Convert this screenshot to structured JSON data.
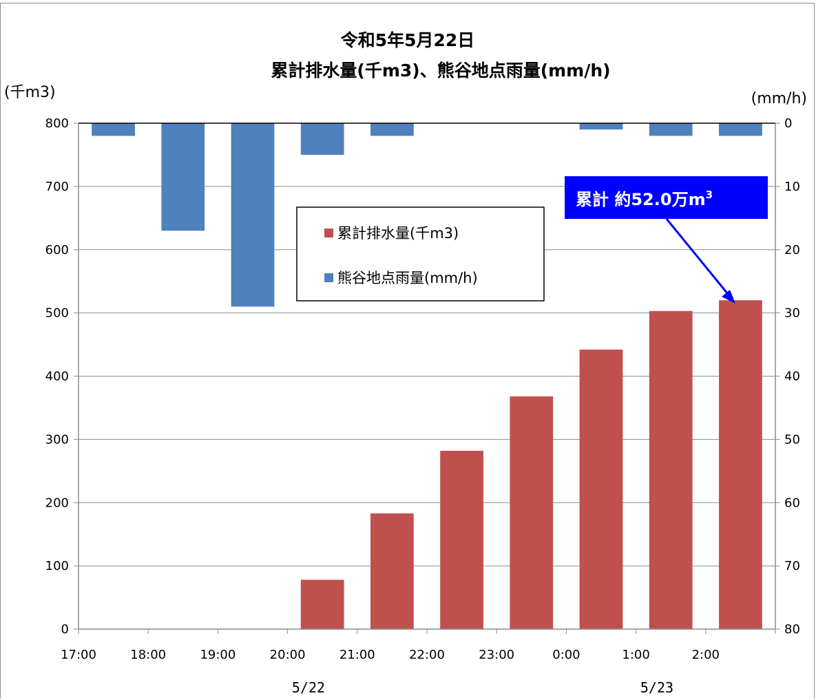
{
  "chart_data": {
    "type": "bar",
    "title_line1": "令和5年5月22日",
    "title_line2": "累計排水量(千m3)、熊谷地点雨量(mm/h)",
    "left_unit": "(千m3)",
    "right_unit": "(mm/h)",
    "categories": [
      "17:00",
      "18:00",
      "19:00",
      "20:00",
      "21:00",
      "22:00",
      "23:00",
      "0:00",
      "1:00",
      "2:00"
    ],
    "date_labels": [
      {
        "label": "5/22",
        "after_category": "20:00"
      },
      {
        "label": "5/23",
        "after_category": "1:00"
      }
    ],
    "left_axis": {
      "ylim": [
        0,
        800
      ],
      "ticks": [
        "0",
        "100",
        "200",
        "300",
        "400",
        "500",
        "600",
        "700",
        "800"
      ]
    },
    "right_axis": {
      "ylim": [
        0,
        80
      ],
      "inverted": true,
      "ticks": [
        "0",
        "10",
        "20",
        "30",
        "40",
        "50",
        "60",
        "70",
        "80"
      ]
    },
    "series": [
      {
        "name": "累計排水量(千m3)",
        "axis": "left",
        "color": "#c0504d",
        "values": [
          0,
          0,
          0,
          78,
          183,
          282,
          368,
          442,
          503,
          520
        ]
      },
      {
        "name": "熊谷地点雨量(mm/h)",
        "axis": "right",
        "color": "#4f81bd",
        "values": [
          2,
          17,
          29,
          5,
          2,
          0,
          0,
          1,
          2,
          2
        ]
      }
    ],
    "annotation": {
      "text_main": "累計 約52.0万m",
      "superscript": "3",
      "bg_color": "#0000ff",
      "target_category": "2:00"
    },
    "grid": true,
    "legend_placement": "center"
  }
}
